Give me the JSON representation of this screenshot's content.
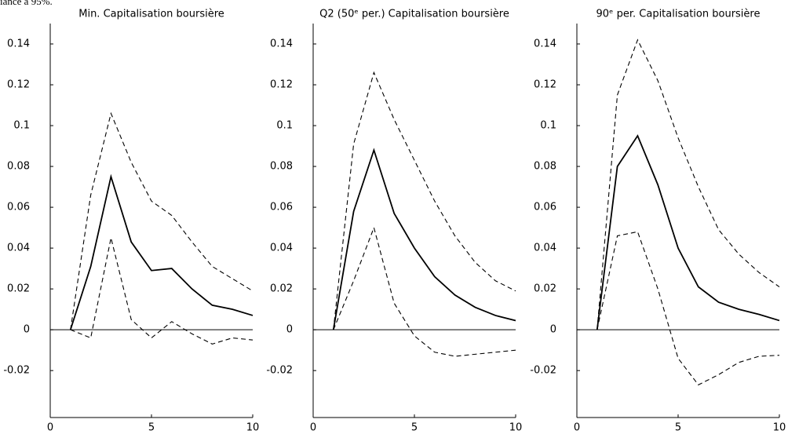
{
  "caption": "iance à 95%.",
  "chart_data": [
    {
      "type": "line",
      "title": "Min. Capitalisation boursière",
      "x": [
        1,
        2,
        3,
        4,
        5,
        6,
        7,
        8,
        9,
        10
      ],
      "series": [
        {
          "color": "#000000",
          "style": "solid",
          "values": [
            0,
            0.031,
            0.075,
            0.043,
            0.029,
            0.03,
            0.02,
            0.012,
            0.01,
            0.007
          ]
        },
        {
          "color": "#000000",
          "style": "dashed",
          "values": [
            0,
            0.066,
            0.106,
            0.082,
            0.063,
            0.056,
            0.043,
            0.031,
            0.025,
            0.019
          ]
        },
        {
          "color": "#000000",
          "style": "dashed",
          "values": [
            0,
            -0.004,
            0.045,
            0.005,
            -0.004,
            0.004,
            -0.002,
            -0.007,
            -0.004,
            -0.005
          ]
        }
      ],
      "xlim": [
        0,
        10
      ],
      "xticks": [
        0,
        5,
        10
      ],
      "ylim": [
        -0.043,
        0.15
      ],
      "yticks": [
        -0.02,
        0,
        0.02,
        0.04,
        0.06,
        0.08,
        0.1,
        0.12,
        0.14
      ]
    },
    {
      "type": "line",
      "title": "Q2 (50ᵉ per.) Capitalisation boursière",
      "x": [
        1,
        2,
        3,
        4,
        5,
        6,
        7,
        8,
        9,
        10
      ],
      "series": [
        {
          "color": "#000000",
          "style": "solid",
          "values": [
            0,
            0.058,
            0.088,
            0.057,
            0.04,
            0.026,
            0.017,
            0.011,
            0.007,
            0.0045
          ]
        },
        {
          "color": "#000000",
          "style": "dashed",
          "values": [
            0,
            0.091,
            0.126,
            0.103,
            0.083,
            0.063,
            0.046,
            0.033,
            0.024,
            0.019
          ]
        },
        {
          "color": "#000000",
          "style": "dashed",
          "values": [
            0,
            0.024,
            0.05,
            0.013,
            -0.003,
            -0.011,
            -0.013,
            -0.012,
            -0.011,
            -0.01
          ]
        }
      ],
      "xlim": [
        0,
        10
      ],
      "xticks": [
        0,
        5,
        10
      ],
      "ylim": [
        -0.043,
        0.15
      ],
      "yticks": [
        -0.02,
        0,
        0.02,
        0.04,
        0.06,
        0.08,
        0.1,
        0.12,
        0.14
      ]
    },
    {
      "type": "line",
      "title": "90ᵉ per. Capitalisation boursière",
      "x": [
        1,
        2,
        3,
        4,
        5,
        6,
        7,
        8,
        9,
        10
      ],
      "series": [
        {
          "color": "#000000",
          "style": "solid",
          "values": [
            0,
            0.08,
            0.095,
            0.071,
            0.04,
            0.021,
            0.0135,
            0.01,
            0.0075,
            0.0045
          ]
        },
        {
          "color": "#000000",
          "style": "dashed",
          "values": [
            0,
            0.115,
            0.142,
            0.122,
            0.094,
            0.07,
            0.049,
            0.037,
            0.028,
            0.021
          ]
        },
        {
          "color": "#000000",
          "style": "dashed",
          "values": [
            0,
            0.046,
            0.048,
            0.02,
            -0.014,
            -0.027,
            -0.022,
            -0.016,
            -0.013,
            -0.0125
          ]
        }
      ],
      "xlim": [
        0,
        10
      ],
      "xticks": [
        0,
        5,
        10
      ],
      "ylim": [
        -0.043,
        0.15
      ],
      "yticks": [
        -0.02,
        0,
        0.02,
        0.04,
        0.06,
        0.08,
        0.1,
        0.12,
        0.14
      ]
    }
  ]
}
